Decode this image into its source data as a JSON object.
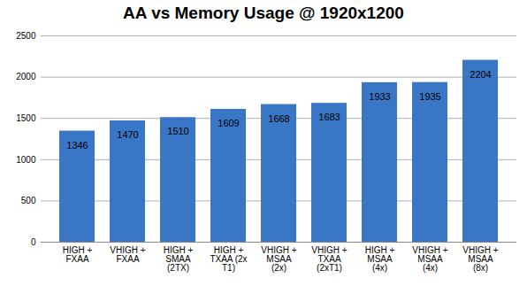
{
  "chart_data": {
    "type": "bar",
    "title": "AA vs Memory Usage @ 1920x1200",
    "categories": [
      "HIGH +\nFXAA",
      "VHIGH +\nFXAA",
      "HIGH +\nSMAA\n(2TX)",
      "HIGH +\nTXAA (2x\nT1)",
      "VHIGH +\nMSAA\n(2x)",
      "VHIGH +\nTXAA\n(2xT1)",
      "HIGH +\nMSAA\n(4x)",
      "VHIGH +\nMSAA\n(4x)",
      "VHIGH +\nMSAA\n(8x)"
    ],
    "values": [
      1346,
      1470,
      1510,
      1609,
      1668,
      1683,
      1933,
      1935,
      2204
    ],
    "color": "#3a76c6",
    "ylim": [
      0,
      2500
    ],
    "yticks": [
      0,
      500,
      1000,
      1500,
      2000,
      2500
    ],
    "grid": true,
    "data_labels": true
  }
}
